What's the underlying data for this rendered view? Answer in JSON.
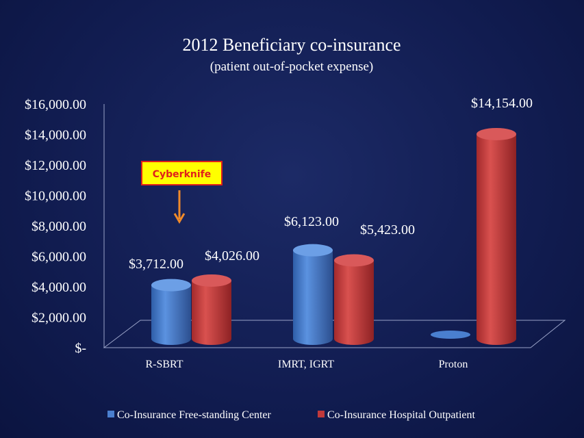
{
  "chart_data": {
    "type": "bar",
    "title": "2012 Beneficiary co-insurance",
    "subtitle": "(patient out-of-pocket expense)",
    "categories": [
      "R-SBRT",
      "IMRT, IGRT",
      "Proton"
    ],
    "series": [
      {
        "name": "Co-Insurance Free-standing Center",
        "color": "#4a7fcf",
        "values": [
          3712,
          6123,
          0
        ],
        "labels": [
          "$3,712.00",
          "$6,123.00",
          ""
        ]
      },
      {
        "name": "Co-Insurance Hospital Outpatient",
        "color": "#c0393b",
        "values": [
          4026,
          5423,
          14154
        ],
        "labels": [
          "$4,026.00",
          "$5,423.00",
          "$14,154.00"
        ]
      }
    ],
    "ylim": [
      0,
      16000
    ],
    "yticks": [
      0,
      2000,
      4000,
      6000,
      8000,
      10000,
      12000,
      14000,
      16000
    ],
    "ytick_labels": [
      "$-",
      "$2,000.00",
      "$4,000.00",
      "$6,000.00",
      "$8,000.00",
      "$10,000.00",
      "$12,000.00",
      "$14,000.00",
      "$16,000.00"
    ],
    "legend_position": "bottom",
    "annotation": {
      "text": "Cyberknife",
      "category": "R-SBRT"
    },
    "grid": false
  }
}
